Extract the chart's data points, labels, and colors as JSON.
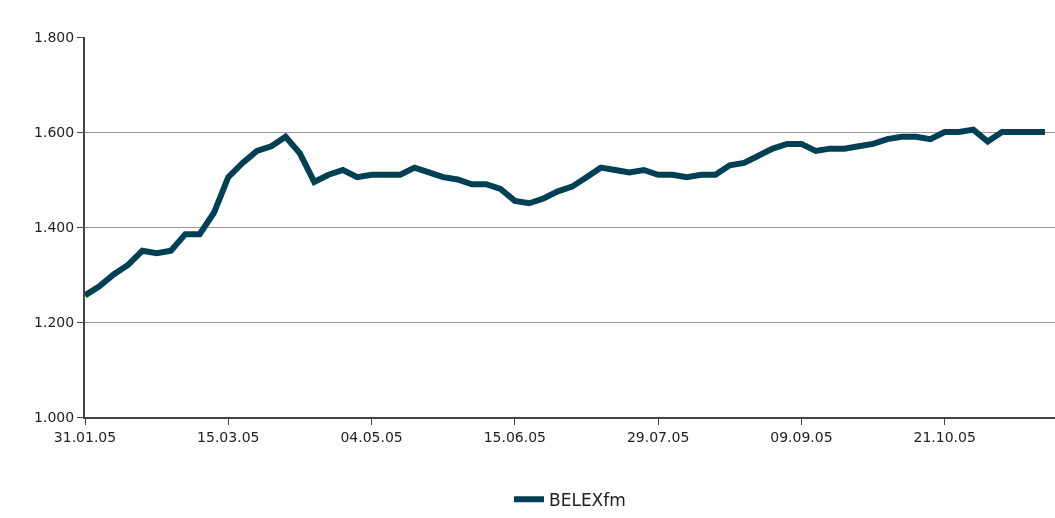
{
  "chart_data": {
    "type": "line",
    "categories": [
      "31.01.05",
      null,
      null,
      null,
      null,
      null,
      null,
      null,
      null,
      null,
      "15.03.05",
      null,
      null,
      null,
      null,
      null,
      null,
      null,
      null,
      null,
      "04.05.05",
      null,
      null,
      null,
      null,
      null,
      null,
      null,
      null,
      null,
      "15.06.05",
      null,
      null,
      null,
      null,
      null,
      null,
      null,
      null,
      null,
      "29.07.05",
      null,
      null,
      null,
      null,
      null,
      null,
      null,
      null,
      null,
      "09.09.05",
      null,
      null,
      null,
      null,
      null,
      null,
      null,
      null,
      null,
      "21.10.05",
      null,
      null,
      null,
      null,
      null,
      null,
      null
    ],
    "series": [
      {
        "name": "BELEXfm",
        "color": "#003f54",
        "values": [
          1256,
          1275,
          1300,
          1320,
          1350,
          1345,
          1350,
          1385,
          1385,
          1430,
          1505,
          1535,
          1560,
          1570,
          1590,
          1555,
          1495,
          1510,
          1520,
          1505,
          1510,
          1510,
          1510,
          1525,
          1515,
          1505,
          1500,
          1490,
          1490,
          1480,
          1455,
          1450,
          1460,
          1475,
          1485,
          1505,
          1525,
          1520,
          1515,
          1520,
          1510,
          1510,
          1505,
          1510,
          1510,
          1530,
          1535,
          1550,
          1565,
          1575,
          1575,
          1560,
          1565,
          1565,
          1570,
          1575,
          1585,
          1590,
          1590,
          1585,
          1600,
          1600,
          1605,
          1580,
          1600,
          1600,
          1600,
          1600
        ]
      }
    ],
    "ylim": [
      1000,
      1800
    ],
    "yticks": [
      {
        "value": 1000,
        "label": "1.000"
      },
      {
        "value": 1200,
        "label": "1.200"
      },
      {
        "value": 1400,
        "label": "1.400"
      },
      {
        "value": 1600,
        "label": "1.600"
      },
      {
        "value": 1800,
        "label": "1.800"
      }
    ],
    "grid": "y",
    "legend": "bottom",
    "marker": "none",
    "line_style": "solid"
  }
}
